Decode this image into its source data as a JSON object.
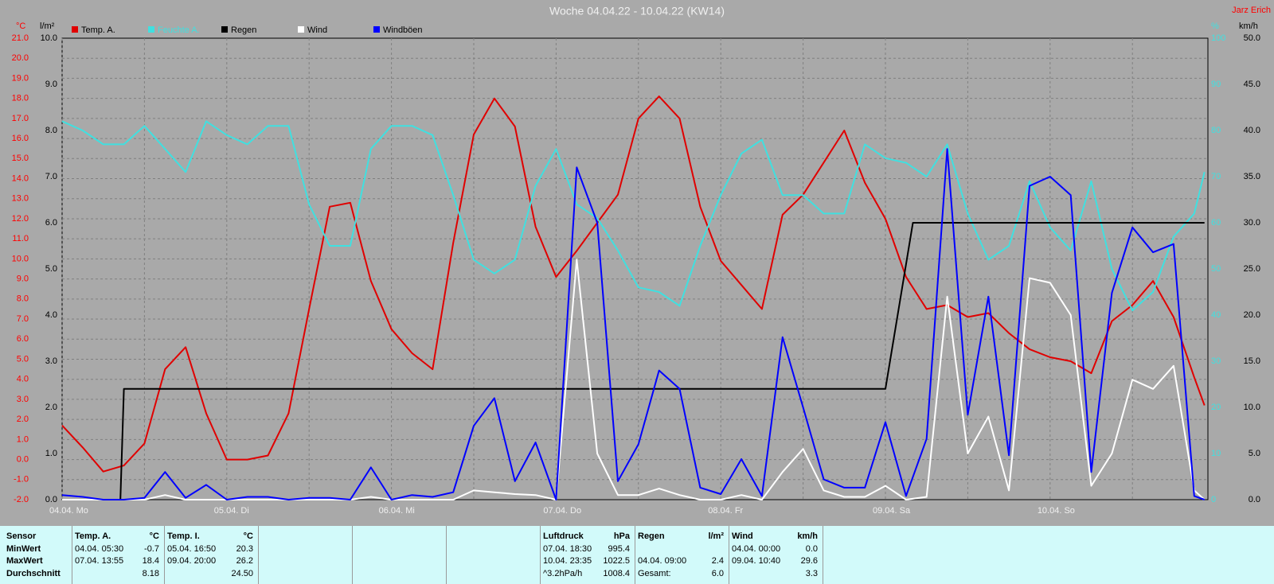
{
  "chart_data": {
    "type": "line",
    "title": "Woche 04.04.22 - 10.04.22 (KW14)",
    "author": "Jarz Erich",
    "ylabel": "°C",
    "y2label": "l/m²",
    "y3label": "%",
    "y4label": "km/h",
    "grid": true,
    "x": [
      0,
      3,
      6,
      9,
      12,
      15,
      18,
      21,
      24,
      27,
      30,
      33,
      36,
      39,
      42,
      45,
      48,
      51,
      54,
      57,
      60,
      63,
      66,
      69,
      72,
      75,
      78,
      81,
      84,
      87,
      90,
      93,
      96,
      99,
      102,
      105,
      108,
      111,
      114,
      117,
      120,
      123,
      126,
      129,
      132,
      135,
      138,
      141,
      144,
      147,
      150,
      153,
      156,
      159,
      162,
      165,
      166.5
    ],
    "xlim": [
      0,
      167
    ],
    "xticks": [
      {
        "value": 0,
        "label": "04.04. Mo"
      },
      {
        "value": 24,
        "label": "05.04. Di"
      },
      {
        "value": 48,
        "label": "06.04. Mi"
      },
      {
        "value": 72,
        "label": "07.04. Do"
      },
      {
        "value": 96,
        "label": "08.04. Fr"
      },
      {
        "value": 120,
        "label": "09.04. Sa"
      },
      {
        "value": 144,
        "label": "10.04. So"
      }
    ],
    "xminor": [
      12,
      36,
      60,
      84,
      108,
      132,
      156
    ],
    "ylim": [
      -2,
      21
    ],
    "yticks": [
      {
        "value": -2,
        "label": "-2.0"
      },
      {
        "value": -1,
        "label": "-1.0"
      },
      {
        "value": 0,
        "label": "0.0"
      },
      {
        "value": 1,
        "label": "1.0"
      },
      {
        "value": 2,
        "label": "2.0"
      },
      {
        "value": 3,
        "label": "3.0"
      },
      {
        "value": 4,
        "label": "4.0"
      },
      {
        "value": 5,
        "label": "5.0"
      },
      {
        "value": 6,
        "label": "6.0"
      },
      {
        "value": 7,
        "label": "7.0"
      },
      {
        "value": 8,
        "label": "8.0"
      },
      {
        "value": 9,
        "label": "9.0"
      },
      {
        "value": 10,
        "label": "10.0"
      },
      {
        "value": 11,
        "label": "11.0"
      },
      {
        "value": 12,
        "label": "12.0"
      },
      {
        "value": 13,
        "label": "13.0"
      },
      {
        "value": 14,
        "label": "14.0"
      },
      {
        "value": 15,
        "label": "15.0"
      },
      {
        "value": 16,
        "label": "16.0"
      },
      {
        "value": 17,
        "label": "17.0"
      },
      {
        "value": 18,
        "label": "18.0"
      },
      {
        "value": 19,
        "label": "19.0"
      },
      {
        "value": 20,
        "label": "20.0"
      },
      {
        "value": 21,
        "label": "21.0"
      }
    ],
    "y2lim": [
      0,
      10
    ],
    "y2ticks": [
      {
        "value": 0,
        "label": "0.0"
      },
      {
        "value": 1,
        "label": "1.0"
      },
      {
        "value": 2,
        "label": "2.0"
      },
      {
        "value": 3,
        "label": "3.0"
      },
      {
        "value": 4,
        "label": "4.0"
      },
      {
        "value": 5,
        "label": "5.0"
      },
      {
        "value": 6,
        "label": "6.0"
      },
      {
        "value": 7,
        "label": "7.0"
      },
      {
        "value": 8,
        "label": "8.0"
      },
      {
        "value": 9,
        "label": "9.0"
      },
      {
        "value": 10,
        "label": "10.0"
      }
    ],
    "y3lim": [
      0,
      100
    ],
    "y3ticks": [
      0,
      10,
      20,
      30,
      40,
      50,
      60,
      70,
      80,
      90,
      100
    ],
    "y4lim": [
      0,
      50
    ],
    "y4ticks": [
      {
        "value": 0,
        "label": "0.0"
      },
      {
        "value": 5,
        "label": "5.0"
      },
      {
        "value": 10,
        "label": "10.0"
      },
      {
        "value": 15,
        "label": "15.0"
      },
      {
        "value": 20,
        "label": "20.0"
      },
      {
        "value": 25,
        "label": "25.0"
      },
      {
        "value": 30,
        "label": "30.0"
      },
      {
        "value": 35,
        "label": "35.0"
      },
      {
        "value": 40,
        "label": "40.0"
      },
      {
        "value": 45,
        "label": "45.0"
      },
      {
        "value": 50,
        "label": "50.0"
      }
    ],
    "series": [
      {
        "name": "Temp. A.",
        "color": "#e00000",
        "axis": "y",
        "values": [
          1.7,
          0.6,
          -0.6,
          -0.3,
          0.8,
          4.5,
          5.6,
          2.3,
          0.0,
          0.0,
          0.2,
          2.3,
          7.5,
          12.6,
          12.8,
          8.9,
          6.5,
          5.3,
          4.5,
          10.8,
          16.2,
          18.0,
          16.6,
          11.6,
          9.1,
          10.4,
          11.8,
          13.2,
          17.0,
          18.1,
          17.0,
          12.6,
          9.9,
          8.7,
          7.5,
          12.2,
          13.2,
          14.8,
          16.4,
          13.8,
          12.0,
          9.1,
          7.5,
          7.7,
          7.1,
          7.3,
          6.3,
          5.5,
          5.1,
          4.9,
          4.3,
          6.9,
          7.7,
          8.9,
          7.1,
          4.1,
          2.7
        ]
      },
      {
        "name": "Feuchte A.",
        "color": "#40e0e0",
        "axis": "y3",
        "values": [
          82,
          80,
          77,
          77,
          81,
          76,
          71,
          82,
          79,
          77,
          81,
          81,
          64,
          55,
          55,
          76,
          81,
          81,
          79,
          66,
          52,
          49,
          52,
          68,
          76,
          64,
          61,
          54,
          46,
          45,
          42,
          55,
          66,
          75,
          78,
          66,
          66,
          62,
          62,
          77,
          74,
          73,
          70,
          77,
          62,
          52,
          55,
          69,
          59,
          54,
          69,
          50,
          41,
          45,
          57,
          62,
          71
        ]
      },
      {
        "name": "Regen",
        "color": "#000000",
        "axis": "y2",
        "x": [
          0,
          8.5,
          9,
          120,
          124,
          166.5
        ],
        "values": [
          0,
          0,
          2.4,
          2.4,
          6.0,
          6.0
        ]
      },
      {
        "name": "Wind",
        "color": "#ffffff",
        "axis": "y4",
        "values": [
          0,
          0,
          0,
          0,
          0,
          0.5,
          0,
          0,
          0,
          0,
          0,
          0,
          0,
          0,
          0,
          0.3,
          0,
          0,
          0,
          0,
          1,
          0.8,
          0.6,
          0.5,
          0,
          26,
          5,
          0.5,
          0.5,
          1.2,
          0.5,
          0,
          0,
          0.5,
          0,
          3,
          5.5,
          1,
          0.3,
          0.3,
          1.5,
          0,
          0.3,
          22,
          5,
          9,
          1,
          24,
          23.5,
          20,
          1.5,
          5,
          13,
          12,
          14.5,
          1,
          0
        ]
      },
      {
        "name": "Windböen",
        "color": "#0000ff",
        "axis": "y4",
        "values": [
          0.5,
          0.3,
          0,
          0,
          0.2,
          3,
          0.2,
          1.6,
          0,
          0.3,
          0.3,
          0,
          0.2,
          0.2,
          0,
          3.5,
          0,
          0.5,
          0.3,
          0.8,
          8,
          11,
          2,
          6.2,
          0,
          36,
          30,
          2,
          6,
          14,
          12,
          1.3,
          0.6,
          4.4,
          0.4,
          17.6,
          10,
          2.2,
          1.3,
          1.3,
          8.4,
          0.4,
          6.6,
          38,
          9.2,
          22,
          4.8,
          34,
          35,
          33,
          3,
          22.4,
          29.5,
          26.8,
          27.7,
          0.4,
          0
        ]
      }
    ]
  },
  "table": {
    "sensor": {
      "header": "Sensor",
      "rows": [
        "MinWert",
        "MaxWert",
        "Durchschnitt"
      ]
    },
    "columns": [
      {
        "header": "Temp. A.",
        "unit": "°C",
        "min": {
          "when": "04.04. 05:30",
          "value": "-0.7"
        },
        "max": {
          "when": "07.04. 13:55",
          "value": "18.4"
        },
        "avg": {
          "value": "8.18"
        }
      },
      {
        "header": "Temp. I.",
        "unit": "°C",
        "min": {
          "when": "05.04. 16:50",
          "value": "20.3"
        },
        "max": {
          "when": "09.04. 20:00",
          "value": "26.2"
        },
        "avg": {
          "value": "24.50"
        }
      },
      {
        "header": "Luftdruck",
        "unit": "hPa",
        "min": {
          "when": "07.04. 18:30",
          "value": "995.4"
        },
        "max": {
          "when": "10.04. 23:35",
          "value": "1022.5"
        },
        "avg": {
          "when": "^3.2hPa/h",
          "value": "1008.4"
        }
      },
      {
        "header": "Regen",
        "unit": "l/m²",
        "max": {
          "when": "04.04. 09:00",
          "value": "2.4"
        },
        "avg": {
          "when": "Gesamt:",
          "value": "6.0"
        }
      },
      {
        "header": "Wind",
        "unit": "km/h",
        "min": {
          "when": "04.04. 00:00",
          "value": "0.0"
        },
        "max": {
          "when": "09.04. 10:40",
          "value": "29.6"
        },
        "avg": {
          "value": "3.3"
        }
      }
    ]
  }
}
